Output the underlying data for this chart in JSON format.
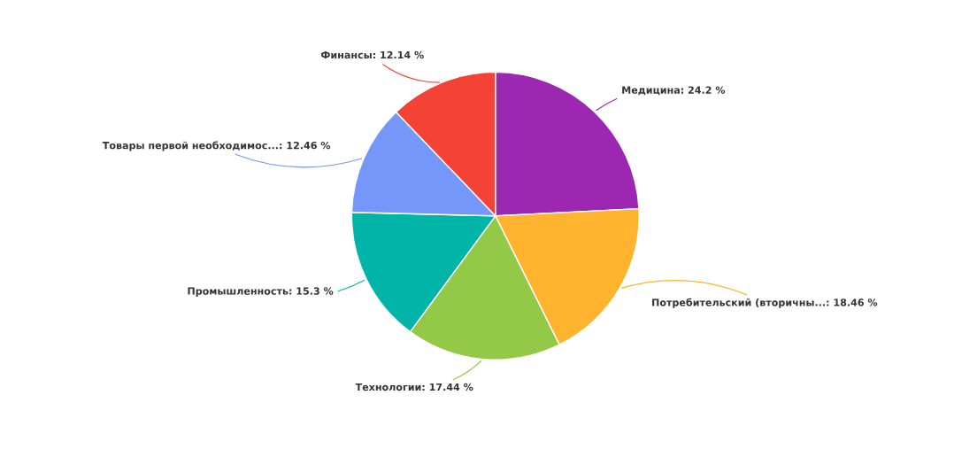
{
  "chart_data": {
    "type": "pie",
    "categories": [
      "Медицина",
      "Потребительский (вторичны...",
      "Технологии",
      "Промышленность",
      "Товары первой необходимос...",
      "Финансы"
    ],
    "values": [
      24.2,
      18.46,
      17.44,
      15.3,
      12.46,
      12.14
    ],
    "value_labels": [
      "24.2 %",
      "18.46 %",
      "17.44 %",
      "15.3 %",
      "12.46 %",
      "12.14 %"
    ],
    "colors": [
      "#9c27b0",
      "#ffb32f",
      "#93c947",
      "#00b5a8",
      "#7597f9",
      "#f44336"
    ],
    "legend": false
  }
}
